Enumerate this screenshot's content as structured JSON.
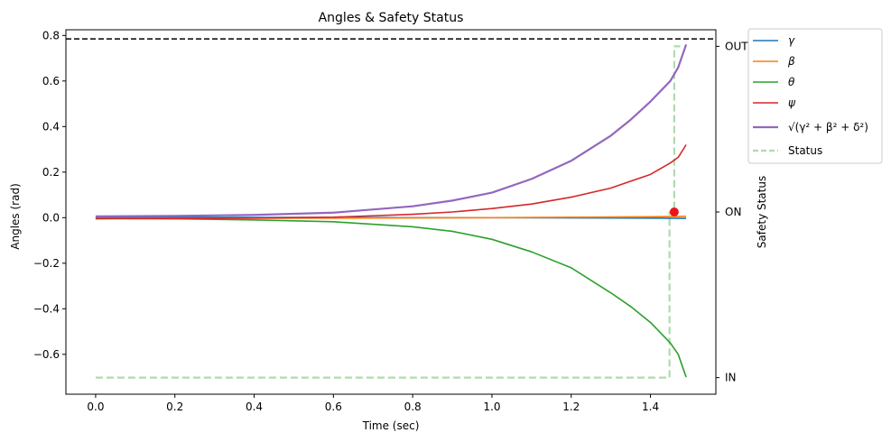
{
  "chart_data": {
    "type": "line",
    "title": "Angles & Safety Status",
    "xlabel": "Time (sec)",
    "ylabel": "Angles (rad)",
    "y2label": "Safety Status",
    "xlim": [
      -0.075,
      1.565
    ],
    "ylim": [
      -0.775,
      0.825
    ],
    "y2lim": [
      -0.1,
      2.1
    ],
    "xticks": [
      0.0,
      0.2,
      0.4,
      0.6,
      0.8,
      1.0,
      1.2,
      1.4
    ],
    "xtick_labels": [
      "0.0",
      "0.2",
      "0.4",
      "0.6",
      "0.8",
      "1.0",
      "1.2",
      "1.4"
    ],
    "yticks": [
      -0.6,
      -0.4,
      -0.2,
      0.0,
      0.2,
      0.4,
      0.6,
      0.8
    ],
    "ytick_labels": [
      "−0.6",
      "−0.4",
      "−0.2",
      "0.0",
      "0.2",
      "0.4",
      "0.6",
      "0.8"
    ],
    "y2ticks": [
      0,
      1,
      2
    ],
    "y2tick_labels": [
      "IN",
      "ON",
      "OUT"
    ],
    "threshold": 0.785,
    "grid": false,
    "legend_placement": "outside-upper-right",
    "series": [
      {
        "name": "γ",
        "color": "#1f77b4",
        "axis": "left",
        "x": [
          0.0,
          0.2,
          0.4,
          0.6,
          0.8,
          1.0,
          1.2,
          1.4,
          1.49
        ],
        "y": [
          0.002,
          0.002,
          0.001,
          0.001,
          0.0,
          0.0,
          -0.001,
          -0.002,
          -0.003
        ]
      },
      {
        "name": "β",
        "color": "#ff7f0e",
        "axis": "left",
        "x": [
          0.0,
          0.2,
          0.4,
          0.6,
          0.8,
          1.0,
          1.2,
          1.4,
          1.49
        ],
        "y": [
          -0.003,
          -0.003,
          -0.002,
          -0.002,
          -0.001,
          0.0,
          0.002,
          0.004,
          0.006
        ]
      },
      {
        "name": "θ",
        "color": "#2ca02c",
        "axis": "left",
        "x": [
          0.0,
          0.2,
          0.4,
          0.6,
          0.8,
          0.9,
          1.0,
          1.1,
          1.2,
          1.3,
          1.35,
          1.4,
          1.45,
          1.47,
          1.49
        ],
        "y": [
          -0.003,
          -0.005,
          -0.01,
          -0.018,
          -0.04,
          -0.06,
          -0.095,
          -0.15,
          -0.22,
          -0.33,
          -0.39,
          -0.46,
          -0.55,
          -0.6,
          -0.7
        ]
      },
      {
        "name": "ψ",
        "color": "#d62728",
        "axis": "left",
        "x": [
          0.0,
          0.2,
          0.4,
          0.6,
          0.8,
          0.9,
          1.0,
          1.1,
          1.2,
          1.3,
          1.35,
          1.4,
          1.45,
          1.47,
          1.49
        ],
        "y": [
          -0.005,
          -0.004,
          -0.002,
          0.002,
          0.015,
          0.025,
          0.04,
          0.06,
          0.09,
          0.13,
          0.16,
          0.19,
          0.24,
          0.265,
          0.32
        ]
      },
      {
        "name": "√(γ² + β² + δ²)",
        "color": "#9467bd",
        "axis": "left",
        "x": [
          0.0,
          0.2,
          0.4,
          0.6,
          0.8,
          0.9,
          1.0,
          1.1,
          1.2,
          1.3,
          1.35,
          1.4,
          1.45,
          1.47,
          1.49
        ],
        "y": [
          0.006,
          0.008,
          0.012,
          0.022,
          0.05,
          0.075,
          0.11,
          0.17,
          0.25,
          0.36,
          0.43,
          0.51,
          0.6,
          0.66,
          0.76
        ]
      },
      {
        "name": "Status",
        "color": "#2ca02c",
        "axis": "right",
        "x": [
          0.0,
          1.448,
          1.448,
          1.46,
          1.46,
          1.475
        ],
        "y": [
          0,
          0,
          1,
          1,
          2,
          2
        ]
      }
    ],
    "marker": {
      "x": 1.46,
      "y": 0.025,
      "color": "#e8161b"
    }
  }
}
